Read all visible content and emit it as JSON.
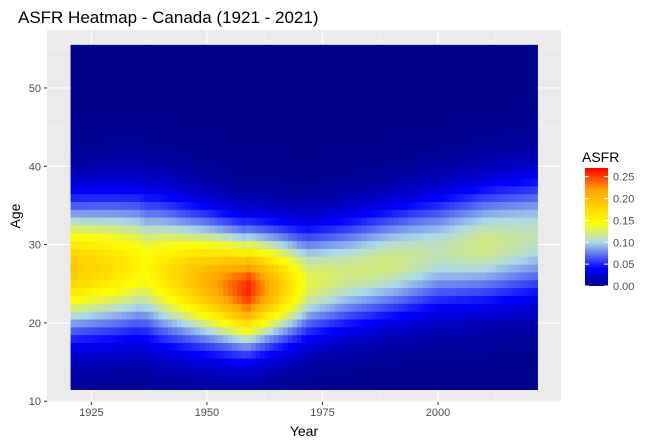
{
  "chart_data": {
    "type": "heatmap",
    "title": "ASFR Heatmap - Canada (1921 - 2021)",
    "xlabel": "Year",
    "ylabel": "Age",
    "xlim": [
      1921,
      2021
    ],
    "ylim": [
      12,
      55
    ],
    "x_ticks": [
      1925,
      1950,
      1975,
      2000
    ],
    "y_ticks": [
      10,
      20,
      30,
      40,
      50
    ],
    "grid": true,
    "panel_background": "#ebebeb",
    "legend": {
      "title": "ASFR",
      "placement": "right",
      "breaks": [
        "0.00",
        "0.05",
        "0.10",
        "0.15",
        "0.20",
        "0.25"
      ],
      "range": [
        0,
        0.27
      ],
      "colors": [
        {
          "v": 0.0,
          "c": "#00008B"
        },
        {
          "v": 0.04,
          "c": "#0000FF"
        },
        {
          "v": 0.1,
          "c": "#ADD8E6"
        },
        {
          "v": 0.145,
          "c": "#FFFF00"
        },
        {
          "v": 0.22,
          "c": "#FFA500"
        },
        {
          "v": 0.27,
          "c": "#FF0000"
        }
      ]
    },
    "surface": {
      "model": "gaussian-age-profile",
      "peak_age_by_year": [
        [
          1921,
          27
        ],
        [
          1935,
          27.5
        ],
        [
          1945,
          26
        ],
        [
          1958,
          24.3
        ],
        [
          1970,
          25
        ],
        [
          1985,
          27
        ],
        [
          2000,
          29
        ],
        [
          2021,
          31
        ]
      ],
      "width_by_year": [
        [
          1921,
          5.5
        ],
        [
          1940,
          5.7
        ],
        [
          1958,
          4.8
        ],
        [
          1970,
          4.6
        ],
        [
          1990,
          4.7
        ],
        [
          2021,
          5.2
        ]
      ],
      "peak_asfr_by_year": [
        [
          1921,
          0.19
        ],
        [
          1930,
          0.17
        ],
        [
          1937,
          0.15
        ],
        [
          1946,
          0.19
        ],
        [
          1952,
          0.22
        ],
        [
          1959,
          0.26
        ],
        [
          1966,
          0.19
        ],
        [
          1972,
          0.13
        ],
        [
          1980,
          0.12
        ],
        [
          1990,
          0.12
        ],
        [
          2000,
          0.11
        ],
        [
          2010,
          0.12
        ],
        [
          2021,
          0.11
        ]
      ],
      "notable_values": [
        {
          "year": 1959,
          "age": 24,
          "asfr": 0.26
        },
        {
          "year": 1925,
          "age": 27,
          "asfr": 0.19
        },
        {
          "year": 1990,
          "age": 27,
          "asfr": 0.12
        },
        {
          "year": 2015,
          "age": 31,
          "asfr": 0.11
        }
      ]
    }
  }
}
